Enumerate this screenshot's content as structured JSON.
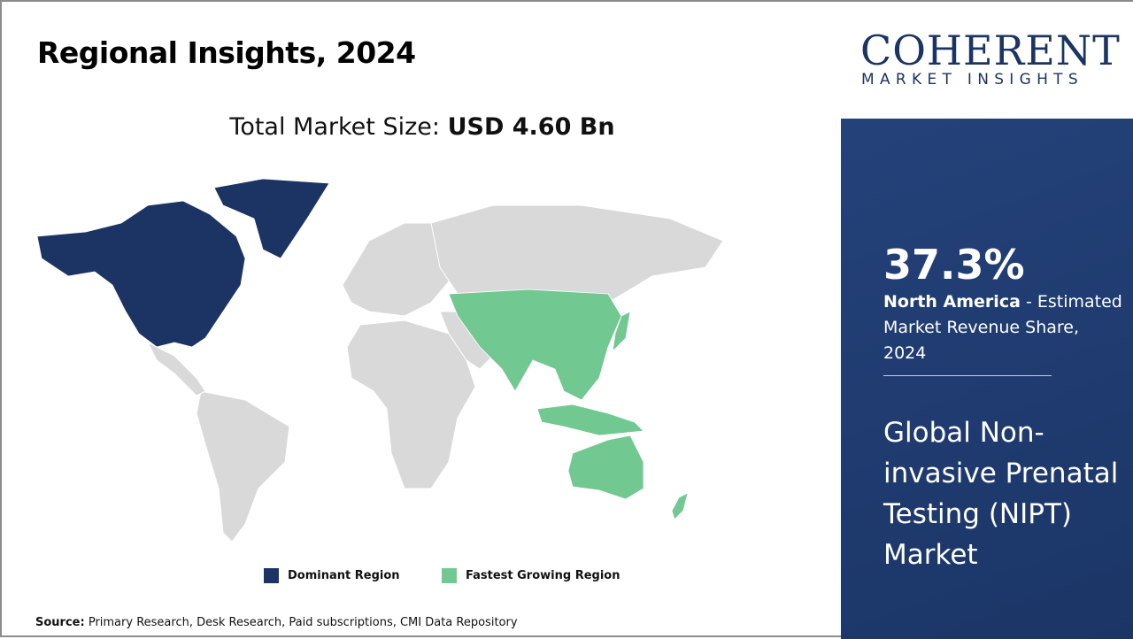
{
  "title": "Regional Insights, 2024",
  "market_size": {
    "label": "Total Market Size:",
    "value": "USD 4.60 Bn"
  },
  "legend": [
    {
      "label": "Dominant Region",
      "color": "#1b3463"
    },
    {
      "label": "Fastest Growing Region",
      "color": "#72c891"
    }
  ],
  "map_colors": {
    "default": "#d9d9d9",
    "dominant": "#1b3463",
    "fastest": "#72c891"
  },
  "source": {
    "label": "Source:",
    "text": "Primary Research, Desk Research, Paid subscriptions, CMI Data Repository"
  },
  "logo": {
    "line1": "COHERENT",
    "line2": "MARKET INSIGHTS"
  },
  "panel": {
    "share": "37.3%",
    "region": "North America",
    "desc": " - Estimated Market Revenue Share, 2024",
    "market": "Global Non-invasive Prenatal Testing (NIPT) Market"
  }
}
